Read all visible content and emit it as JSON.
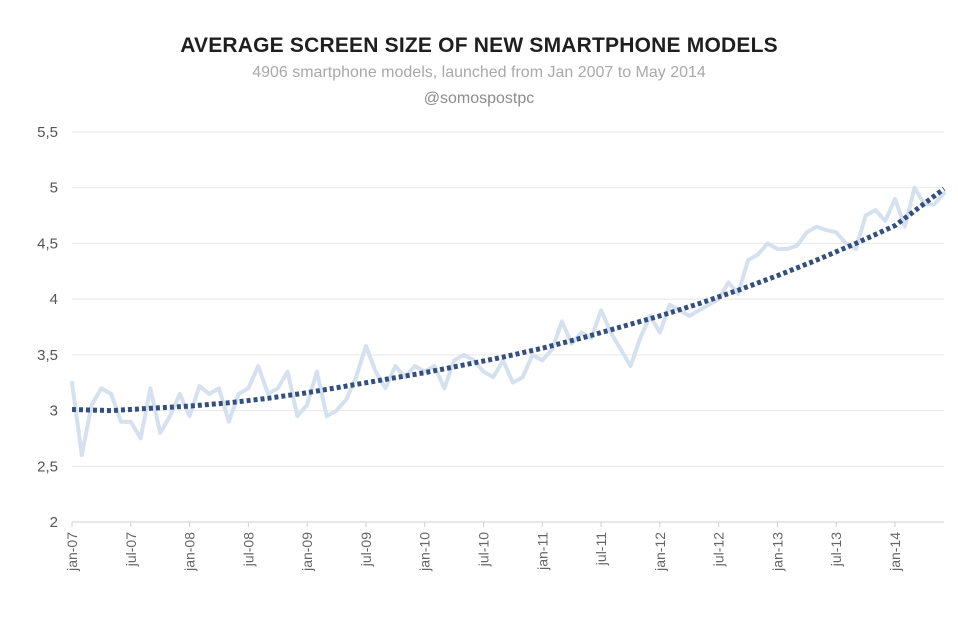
{
  "chart_data": {
    "type": "line",
    "title": "AVERAGE SCREEN SIZE OF NEW SMARTPHONE MODELS",
    "subtitle": "4906 smartphone models, launched from Jan 2007 to May 2014",
    "source": "@somospostpc",
    "xlabel": "",
    "ylabel": "",
    "ylim": [
      2,
      5.5
    ],
    "yticks": [
      "2",
      "2,5",
      "3",
      "3,5",
      "4",
      "4,5",
      "5",
      "5,5"
    ],
    "ytick_values": [
      2,
      2.5,
      3,
      3.5,
      4,
      4.5,
      5,
      5.5
    ],
    "xticks": [
      "jan-07",
      "jul-07",
      "jan-08",
      "jul-08",
      "jan-09",
      "jul-09",
      "jan-10",
      "jul-10",
      "jan-11",
      "jul-11",
      "jan-12",
      "jul-12",
      "jan-13",
      "jul-13",
      "jan-14"
    ],
    "xlim_months": [
      0,
      89
    ],
    "grid": true,
    "series": [
      {
        "style": "solid",
        "color": "#d6e1ef",
        "x": [
          0,
          1,
          2,
          3,
          4,
          5,
          6,
          7,
          8,
          9,
          10,
          11,
          12,
          13,
          14,
          15,
          16,
          17,
          18,
          19,
          20,
          21,
          22,
          23,
          24,
          25,
          26,
          27,
          28,
          29,
          30,
          31,
          32,
          33,
          34,
          35,
          36,
          37,
          38,
          39,
          40,
          41,
          42,
          43,
          44,
          45,
          46,
          47,
          48,
          49,
          50,
          51,
          52,
          53,
          54,
          55,
          56,
          57,
          58,
          59,
          60,
          61,
          62,
          63,
          64,
          65,
          66,
          67,
          68,
          69,
          70,
          71,
          72,
          73,
          74,
          75,
          76,
          77,
          78,
          79,
          80,
          81,
          82,
          83,
          84,
          85,
          86,
          87,
          88,
          89
        ],
        "values": [
          3.25,
          2.6,
          3.05,
          3.2,
          3.15,
          2.9,
          2.9,
          2.75,
          3.2,
          2.8,
          2.95,
          3.15,
          2.95,
          3.22,
          3.15,
          3.2,
          2.9,
          3.15,
          3.2,
          3.4,
          3.15,
          3.2,
          3.35,
          2.95,
          3.05,
          3.35,
          2.95,
          3.0,
          3.1,
          3.3,
          3.58,
          3.35,
          3.2,
          3.4,
          3.3,
          3.4,
          3.35,
          3.4,
          3.2,
          3.45,
          3.5,
          3.45,
          3.35,
          3.3,
          3.45,
          3.25,
          3.3,
          3.5,
          3.45,
          3.55,
          3.8,
          3.6,
          3.7,
          3.65,
          3.9,
          3.7,
          3.55,
          3.4,
          3.65,
          3.85,
          3.7,
          3.95,
          3.9,
          3.85,
          3.9,
          3.95,
          4.0,
          4.15,
          4.05,
          4.35,
          4.4,
          4.5,
          4.45,
          4.45,
          4.48,
          4.6,
          4.65,
          4.62,
          4.6,
          4.5,
          4.45,
          4.75,
          4.8,
          4.7,
          4.9,
          4.65,
          5.0,
          4.85,
          4.85,
          4.95
        ]
      },
      {
        "style": "dotted",
        "color": "#33507d",
        "x": [
          0,
          4,
          8,
          12,
          16,
          20,
          24,
          28,
          32,
          36,
          40,
          44,
          48,
          52,
          56,
          60,
          64,
          68,
          72,
          76,
          80,
          84,
          89
        ],
        "values": [
          3.01,
          3.0,
          3.02,
          3.04,
          3.07,
          3.11,
          3.16,
          3.22,
          3.28,
          3.34,
          3.41,
          3.48,
          3.56,
          3.65,
          3.75,
          3.85,
          3.96,
          4.08,
          4.21,
          4.35,
          4.5,
          4.66,
          4.99
        ]
      }
    ]
  }
}
